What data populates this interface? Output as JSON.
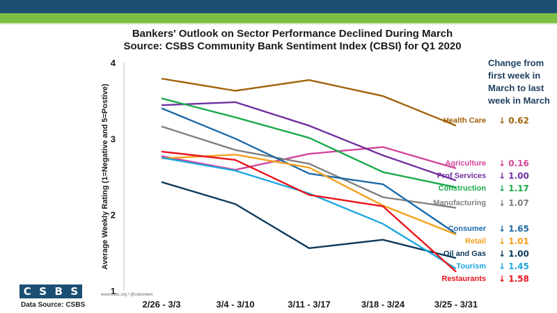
{
  "header": {
    "title": "Bankers' Outlook on Sector Performance Declined During March",
    "subtitle": "Source: CSBS Community Bank Sentiment Index (CBSI) for Q1 2020",
    "change_heading": "Change from first week in March to last week in March"
  },
  "footer": {
    "logo_letters": [
      "C",
      "S",
      "B",
      "S"
    ],
    "data_source": "Data Source: CSBS",
    "website": "www.csbs.org / @csbsnews"
  },
  "colors": {
    "band_top": "#1b4f72",
    "band_green": "#7dbf42"
  },
  "chart_data": {
    "type": "line",
    "categories": [
      "2/26 - 3/3",
      "3/4 - 3/10",
      "3/11 - 3/17",
      "3/18 - 3/24",
      "3/25 - 3/31"
    ],
    "ylabel": "Average Weekly Rating (1=Negative and 5=Postive)",
    "ylim": [
      1,
      4
    ],
    "yticks": [
      "1",
      "2",
      "3",
      "4"
    ],
    "grid": false,
    "legend": "right, direct labels",
    "series": [
      {
        "name": "Health Care",
        "color": "#a0620a",
        "values": [
          3.79,
          3.63,
          3.77,
          3.56,
          3.17
        ],
        "change": "↓ 0.62"
      },
      {
        "name": "Agriculture",
        "color": "#d2459a",
        "values": [
          2.77,
          2.59,
          2.8,
          2.89,
          2.61
        ],
        "change": "↓ 0.16"
      },
      {
        "name": "Prof Services",
        "color": "#7030a0",
        "values": [
          3.44,
          3.48,
          3.17,
          2.78,
          2.45
        ],
        "change": "↓ 1.00"
      },
      {
        "name": "Construction",
        "color": "#1aaa4a",
        "values": [
          3.53,
          3.28,
          3.01,
          2.56,
          2.36
        ],
        "change": "↓ 1.17"
      },
      {
        "name": "Manufacturing",
        "color": "#808080",
        "values": [
          3.16,
          2.85,
          2.67,
          2.23,
          2.09
        ],
        "change": "↓ 1.07"
      },
      {
        "name": "Consumer",
        "color": "#1e6aa8",
        "values": [
          3.4,
          3.0,
          2.54,
          2.4,
          1.75
        ],
        "change": "↓ 1.65"
      },
      {
        "name": "Retail",
        "color": "#f4a01e",
        "values": [
          2.74,
          2.79,
          2.62,
          2.12,
          1.74
        ],
        "change": "↓ 1.01"
      },
      {
        "name": "Oil and Gas",
        "color": "#0d3a5c",
        "values": [
          2.43,
          2.14,
          1.56,
          1.67,
          1.43
        ],
        "change": "↓ 1.00"
      },
      {
        "name": "Tourism",
        "color": "#1fa8e0",
        "values": [
          2.75,
          2.58,
          2.28,
          1.88,
          1.29
        ],
        "change": "↓ 1.45"
      },
      {
        "name": "Restaurants",
        "color": "#e8141c",
        "values": [
          2.83,
          2.72,
          2.26,
          2.11,
          1.25
        ],
        "change": "↓ 1.58"
      }
    ]
  }
}
